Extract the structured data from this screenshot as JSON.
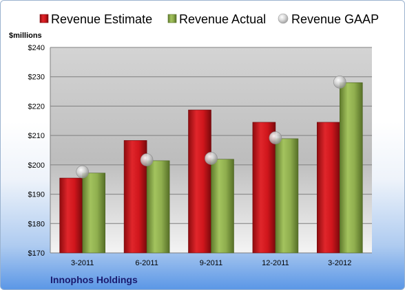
{
  "chart_data": {
    "type": "bar",
    "title": "",
    "unit_label": "$millions",
    "footer_label": "Innophos Holdings",
    "categories": [
      "3-2011",
      "6-2011",
      "9-2011",
      "12-2011",
      "3-2012"
    ],
    "ylim": [
      170,
      240
    ],
    "yticks": [
      170,
      180,
      190,
      200,
      210,
      220,
      230,
      240
    ],
    "ytick_labels": [
      "$170",
      "$180",
      "$190",
      "$200",
      "$210",
      "$220",
      "$230",
      "$240"
    ],
    "grid": true,
    "legend_position": "top",
    "series": [
      {
        "name": "Revenue Estimate",
        "kind": "bar",
        "color": "#d0161c",
        "values": [
          195.5,
          208.3,
          218.7,
          214.5,
          214.5
        ]
      },
      {
        "name": "Revenue Actual",
        "kind": "bar",
        "color": "#8fae4e",
        "values": [
          197.2,
          201.4,
          201.9,
          208.9,
          228.0
        ]
      },
      {
        "name": "Revenue GAAP",
        "kind": "marker",
        "color": "#c7c7c7",
        "values": [
          197.6,
          201.7,
          202.2,
          209.2,
          228.2
        ]
      }
    ]
  }
}
